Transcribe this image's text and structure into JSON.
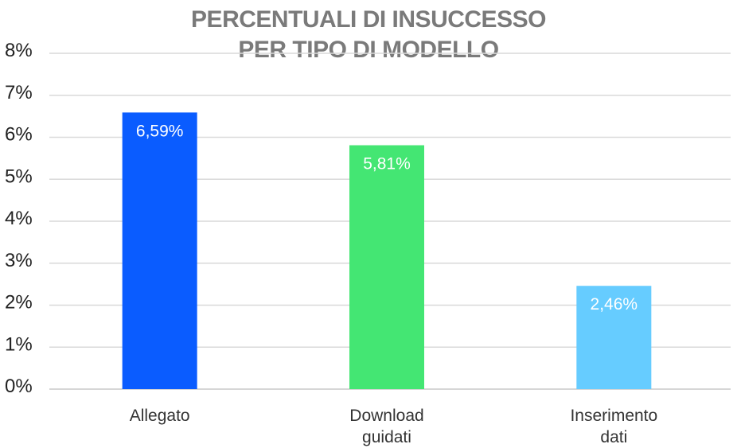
{
  "chart_data": {
    "type": "bar",
    "title": [
      "PERCENTUALI DI INSUCCESSO",
      "PER TIPO DI MODELLO"
    ],
    "categories": [
      [
        "Allegato"
      ],
      [
        "Download",
        "guidati"
      ],
      [
        "Inserimento",
        "dati"
      ]
    ],
    "values": [
      6.59,
      5.81,
      2.46
    ],
    "data_labels": [
      "6,59%",
      "5,81%",
      "2,46%"
    ],
    "bar_colors": [
      "#0a5cff",
      "#44e673",
      "#66ccff"
    ],
    "ylim": [
      0,
      8
    ],
    "yticks": [
      "0%",
      "1%",
      "2%",
      "3%",
      "4%",
      "5%",
      "6%",
      "7%",
      "8%"
    ],
    "xlabel": "",
    "ylabel": "",
    "grid": true,
    "grid_color": "#d9d9d9",
    "title_color": "#7a7a7a"
  }
}
